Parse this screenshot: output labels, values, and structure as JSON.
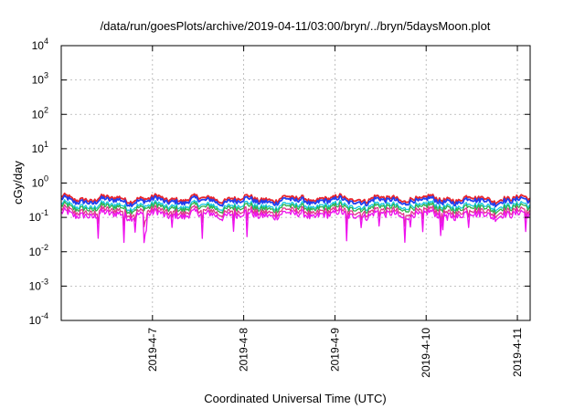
{
  "chart_data": {
    "type": "line",
    "title": "/data/run/goesPlots/archive/2019-04-11/03:00/bryn/../bryn/5daysMoon.plot",
    "xlabel": "Coordinated Universal Time (UTC)",
    "ylabel": "cGy/day",
    "yscale": "log",
    "ylim": [
      0.0001,
      10000
    ],
    "xlim": [
      0,
      5.14
    ],
    "grid": true,
    "y_ticks": [
      {
        "base": "10",
        "exp": "-4",
        "value": 0.0001
      },
      {
        "base": "10",
        "exp": "-3",
        "value": 0.001
      },
      {
        "base": "10",
        "exp": "-2",
        "value": 0.01
      },
      {
        "base": "10",
        "exp": "-1",
        "value": 0.1
      },
      {
        "base": "10",
        "exp": "0",
        "value": 1
      },
      {
        "base": "10",
        "exp": "1",
        "value": 10
      },
      {
        "base": "10",
        "exp": "2",
        "value": 100
      },
      {
        "base": "10",
        "exp": "3",
        "value": 1000
      },
      {
        "base": "10",
        "exp": "4",
        "value": 10000
      }
    ],
    "x_ticks": [
      {
        "label": "2019-4-7",
        "value": 1
      },
      {
        "label": "2019-4-8",
        "value": 2
      },
      {
        "label": "2019-4-9",
        "value": 3
      },
      {
        "label": "2019-4-10",
        "value": 4
      },
      {
        "label": "2019-4-11",
        "value": 5
      }
    ],
    "series": [
      {
        "color": "#e8242b",
        "base": 0.35
      },
      {
        "color": "#1f3ff0",
        "base": 0.3
      },
      {
        "color": "#17c8e0",
        "base": 0.22
      },
      {
        "color": "#2fb24a",
        "base": 0.19
      },
      {
        "color": "#e0368c",
        "base": 0.15
      },
      {
        "color": "#ee10ee",
        "base": 0.12
      }
    ]
  }
}
